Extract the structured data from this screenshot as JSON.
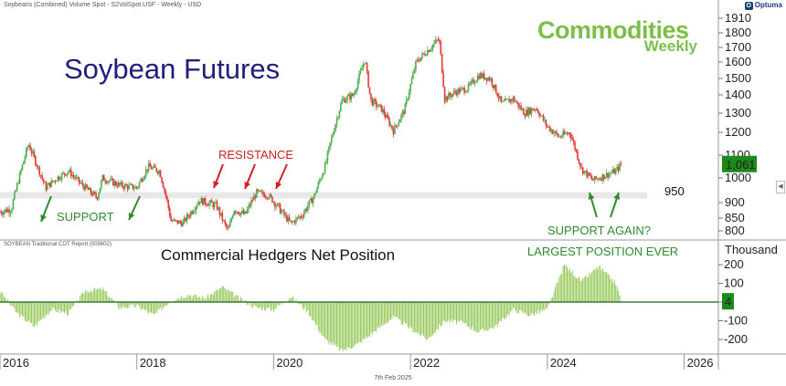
{
  "header": "Soybeans (Combined) Volume Spot - S2VolSpot.USF - Weekly - USD",
  "cot_header": "SOYBEAN Traditional COT Report (005602)",
  "footer_date": "7th Feb 2025",
  "optuma": "Optuma",
  "title": "Soybean Futures",
  "brand_line1": "Commodities",
  "brand_line2": "Weekly",
  "subtitle": "Commercial Hedgers Net Position",
  "annotations": {
    "resistance": "RESISTANCE",
    "support": "SUPPORT",
    "support_again": "SUPPORT AGAIN?",
    "largest": "LARGEST POSITION EVER",
    "level_950": "950"
  },
  "colors": {
    "up": "#4caf50",
    "down": "#e53935",
    "cot": "#8bc34a",
    "band": "#e8e8e8",
    "accent": "#1b8a1b"
  },
  "chart_data": [
    {
      "type": "candlestick",
      "title": "Soybean Futures",
      "x_range": [
        "2016-01-01",
        "2026-07-01"
      ],
      "ylim": [
        760,
        1930
      ],
      "y_ticks": [
        800,
        850,
        900,
        1000,
        1100,
        1200,
        1300,
        1400,
        1500,
        1600,
        1700,
        1800,
        1910
      ],
      "current_value_label": "1,061",
      "current_value": 1061,
      "support_level": 950,
      "x_tick_labels": [
        "2016",
        "2018",
        "2020",
        "2022",
        "2024",
        "2026"
      ],
      "price_path": [
        [
          "2016-01",
          870
        ],
        [
          "2016-03",
          880
        ],
        [
          "2016-06",
          1150
        ],
        [
          "2016-09",
          960
        ],
        [
          "2016-11",
          1000
        ],
        [
          "2017-01",
          1030
        ],
        [
          "2017-03",
          980
        ],
        [
          "2017-06",
          920
        ],
        [
          "2017-07",
          1000
        ],
        [
          "2017-10",
          970
        ],
        [
          "2018-01",
          960
        ],
        [
          "2018-03",
          1050
        ],
        [
          "2018-05",
          1030
        ],
        [
          "2018-07",
          840
        ],
        [
          "2018-09",
          830
        ],
        [
          "2018-12",
          910
        ],
        [
          "2019-03",
          890
        ],
        [
          "2019-05",
          800
        ],
        [
          "2019-06",
          880
        ],
        [
          "2019-08",
          860
        ],
        [
          "2019-10",
          940
        ],
        [
          "2019-12",
          930
        ],
        [
          "2020-02",
          880
        ],
        [
          "2020-04",
          830
        ],
        [
          "2020-06",
          860
        ],
        [
          "2020-08",
          920
        ],
        [
          "2020-10",
          1050
        ],
        [
          "2021-01",
          1370
        ],
        [
          "2021-03",
          1400
        ],
        [
          "2021-05",
          1620
        ],
        [
          "2021-06",
          1370
        ],
        [
          "2021-08",
          1320
        ],
        [
          "2021-10",
          1210
        ],
        [
          "2021-12",
          1320
        ],
        [
          "2022-02",
          1600
        ],
        [
          "2022-04",
          1680
        ],
        [
          "2022-06",
          1760
        ],
        [
          "2022-07",
          1380
        ],
        [
          "2022-09",
          1420
        ],
        [
          "2022-11",
          1440
        ],
        [
          "2023-01",
          1520
        ],
        [
          "2023-03",
          1500
        ],
        [
          "2023-05",
          1350
        ],
        [
          "2023-07",
          1380
        ],
        [
          "2023-09",
          1300
        ],
        [
          "2023-11",
          1330
        ],
        [
          "2024-01",
          1230
        ],
        [
          "2024-03",
          1180
        ],
        [
          "2024-05",
          1200
        ],
        [
          "2024-07",
          1040
        ],
        [
          "2024-09",
          990
        ],
        [
          "2024-11",
          1010
        ],
        [
          "2025-01",
          1030
        ],
        [
          "2025-02",
          1061
        ]
      ]
    },
    {
      "type": "bar",
      "title": "Commercial Hedgers Net Position",
      "ylabel": "Thousand",
      "ylim": [
        -270,
        260
      ],
      "y_ticks": [
        -200,
        -100,
        0,
        100,
        200
      ],
      "current_value_label": "4",
      "current_value": 4,
      "cot_path": [
        [
          "2016-01",
          60
        ],
        [
          "2016-04",
          -60
        ],
        [
          "2016-07",
          -130
        ],
        [
          "2016-10",
          -40
        ],
        [
          "2017-01",
          -60
        ],
        [
          "2017-04",
          60
        ],
        [
          "2017-07",
          70
        ],
        [
          "2017-10",
          -30
        ],
        [
          "2018-01",
          -20
        ],
        [
          "2018-04",
          -70
        ],
        [
          "2018-07",
          10
        ],
        [
          "2018-10",
          40
        ],
        [
          "2019-01",
          20
        ],
        [
          "2019-04",
          80
        ],
        [
          "2019-07",
          20
        ],
        [
          "2019-10",
          -30
        ],
        [
          "2020-01",
          -40
        ],
        [
          "2020-04",
          30
        ],
        [
          "2020-07",
          -50
        ],
        [
          "2020-10",
          -200
        ],
        [
          "2021-01",
          -260
        ],
        [
          "2021-04",
          -220
        ],
        [
          "2021-07",
          -150
        ],
        [
          "2021-10",
          -80
        ],
        [
          "2022-01",
          -140
        ],
        [
          "2022-04",
          -200
        ],
        [
          "2022-07",
          -100
        ],
        [
          "2022-10",
          -110
        ],
        [
          "2023-01",
          -160
        ],
        [
          "2023-04",
          -130
        ],
        [
          "2023-07",
          -40
        ],
        [
          "2023-10",
          -70
        ],
        [
          "2024-01",
          -40
        ],
        [
          "2024-04",
          200
        ],
        [
          "2024-07",
          110
        ],
        [
          "2024-10",
          190
        ],
        [
          "2025-01",
          100
        ],
        [
          "2025-02",
          4
        ]
      ]
    }
  ]
}
